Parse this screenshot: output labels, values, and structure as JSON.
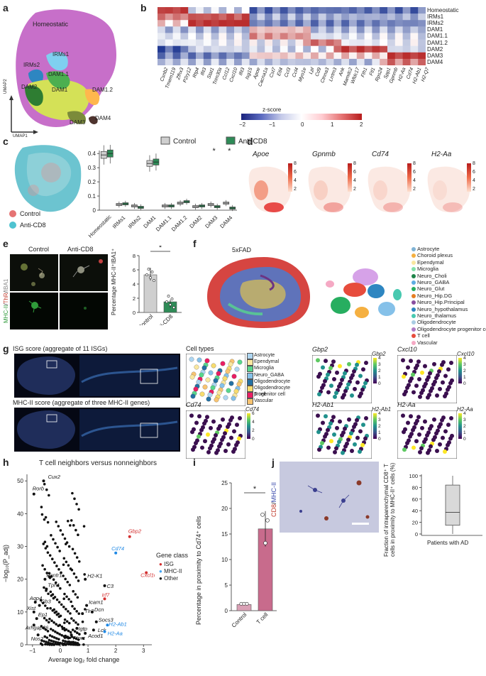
{
  "panels": {
    "a": "a",
    "b": "b",
    "c": "c",
    "d": "d",
    "e": "e",
    "f": "f",
    "g": "g",
    "h": "h",
    "i": "i",
    "j": "j"
  },
  "panel_a": {
    "clusters": [
      "Homeostatic",
      "IRMs1",
      "IRMs2",
      "DAM1.1",
      "DAM2",
      "DAM1",
      "DAM1.2",
      "DAM3",
      "DAM4"
    ],
    "axis_y": "UMAP2",
    "axis_x": "UMAP1"
  },
  "panel_b": {
    "rows": [
      "Homeostatic",
      "IRMs1",
      "IRMs2",
      "DAM1",
      "DAM1.1",
      "DAM1.2",
      "DAM2",
      "DAM3",
      "DAM4"
    ],
    "genes": [
      "Csnb2",
      "Tmem119",
      "Zfhx3",
      "P2ry12",
      "Rtp4",
      "Ifit3",
      "Stat1",
      "Trim30a",
      "Ccl12",
      "Cxcl10",
      "Ifit3",
      "Isg15",
      "Apoe",
      "Cacna1a",
      "Cst7",
      "Etl4",
      "Ccl3",
      "Ccl4",
      "Myo1e",
      "Lpl",
      "Cd9",
      "Ctnna3",
      "Lrrtm3",
      "Ank",
      "Mamdc2",
      "Wfdc17",
      "Fth1",
      "Ftl1",
      "Rps24",
      "Spp1",
      "Gpnmb",
      "H2-Aa",
      "Cd74",
      "H2-Ab1",
      "H2-Q7"
    ],
    "legend_title": "z-score",
    "legend_ticks": [
      "−2",
      "−1",
      "0",
      "1",
      "2"
    ]
  },
  "panel_c": {
    "legend_control": "Control",
    "legend_anti": "Anti-CD8",
    "umap_legend": [
      "Control",
      "Anti-CD8"
    ],
    "categories": [
      "Homeostatic",
      "IRMs1",
      "IRMs2",
      "DAM1",
      "DAM1.1",
      "DAM1.2",
      "DAM2",
      "DAM3",
      "DAM4"
    ],
    "yticks": [
      "0",
      "0.1",
      "0.2",
      "0.3",
      "0.4"
    ],
    "star": "*"
  },
  "panel_d": {
    "genes": [
      "Apoe",
      "Gpnmb",
      "Cd74",
      "H2-Aa"
    ],
    "ticks": [
      "8",
      "6",
      "4",
      "2"
    ]
  },
  "panel_e": {
    "col_control": "Control",
    "col_anti": "Anti-CD8",
    "side_label": "MHC-II/ThR/IBA1",
    "ylabel": "Percentage MHC-II⁺IBA1⁺",
    "yticks": [
      "0",
      "2",
      "4",
      "6",
      "8"
    ],
    "xlabels": [
      "Control",
      "Anti-CD8"
    ],
    "star": "*"
  },
  "panel_f": {
    "title": "5xFAD",
    "legend": [
      "Astrocyte",
      "Choroid plexus",
      "Ependymal",
      "Microglia",
      "Neuro_Choli",
      "Neuro_GABA",
      "Neuro_Glut",
      "Neuro_Hip.DG",
      "Neuro_Hip.Principal",
      "Neuro_hypothalamus",
      "Neuro_thalamus",
      "Oligodendrocyte",
      "Oligodendrocyte progenitor cell",
      "T cell",
      "Vascular"
    ],
    "colors": [
      "#7fb3d5",
      "#f5b041",
      "#f9e79f",
      "#82e0aa",
      "#1e8449",
      "#5dade2",
      "#27ae60",
      "#e67e22",
      "#884ea0",
      "#2e86c1",
      "#48c9b0",
      "#a9cce3",
      "#af7ac5",
      "#e74c3c",
      "#f5a9c4"
    ]
  },
  "panel_g": {
    "isg_title": "ISG score (aggregate of 11 ISGs)",
    "mhc_title": "MHC-II score (aggregate of three MHC-II genes)",
    "cell_types_title": "Cell types",
    "cell_types": [
      "Astrocyte",
      "Ependymal",
      "Microglia",
      "Neuro_GABA",
      "Oligodendrocyte",
      "Oligodendrocyte progenitor cell",
      "T cell",
      "Vascular"
    ],
    "cell_colors": [
      "#aed6f1",
      "#f9e79f",
      "#58d68d",
      "#85c1e9",
      "#2471a3",
      "#f7dc6f",
      "#e91e63",
      "#f8c471"
    ],
    "genes": [
      "Gbp2",
      "Cxcl10",
      "Cd74",
      "H2-Ab1",
      "H2-Aa"
    ],
    "ticks_small": [
      "4",
      "3",
      "2",
      "1",
      "0"
    ],
    "ticks_cd74": [
      "6",
      "4",
      "2",
      "0"
    ]
  },
  "panel_h": {
    "title": "T cell neighbors versus nonneighbors",
    "xlabel": "Average log₂ fold change",
    "ylabel": "−log₁₀(P_adj)",
    "xticks": [
      "−1",
      "0",
      "1",
      "2",
      "3"
    ],
    "yticks": [
      "0",
      "10",
      "20",
      "30",
      "40",
      "50"
    ],
    "legend_title": "Gene class",
    "legend": [
      "ISG",
      "MHC-II",
      "Other"
    ],
    "labels_black": [
      "Cux2",
      "Rorb",
      "Pantr1",
      "Tph1",
      "Aqp4",
      "Gb3",
      "Xist",
      "Ep1",
      "Arhgap36",
      "Nos2",
      "H2-K1",
      "C3",
      "Icam1",
      "Tlr2",
      "Dcn",
      "Socs3",
      "Lck",
      "Ptprc",
      "Acod1",
      "Igtp"
    ],
    "labels_red": [
      "Gbp2",
      "Cxcl10",
      "Irf7"
    ],
    "labels_blue": [
      "Cd74",
      "H2-Ab1",
      "H2-Aa"
    ]
  },
  "panel_i": {
    "ylabel": "Percentage in proximity to Cd74⁺ cells",
    "yticks": [
      "0",
      "5",
      "10",
      "15",
      "20",
      "25"
    ],
    "xlabels": [
      "Control",
      "T cell"
    ],
    "star": "*"
  },
  "panel_j": {
    "side_label": "CD8/MHC-II",
    "ylabel": "Fraction of intraparenchymal CD8⁺ T cells in proximity to MHC-II⁺ cells (%)",
    "yticks": [
      "0",
      "20",
      "40",
      "60",
      "80",
      "100"
    ],
    "xlabel": "Patients with AD"
  }
}
